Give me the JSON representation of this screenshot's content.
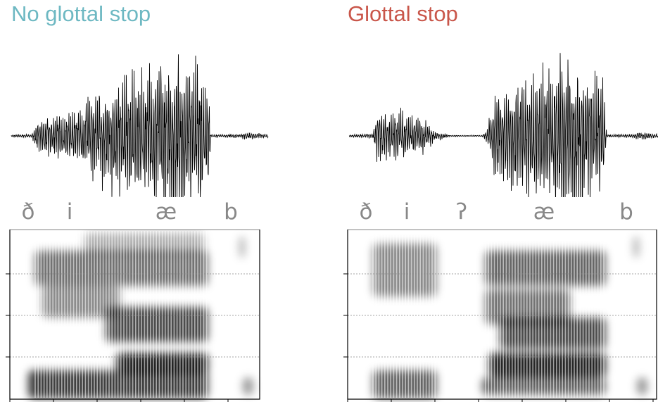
{
  "colors": {
    "left_title": "#6db8c2",
    "right_title": "#c9564a",
    "phoneme": "#888888",
    "waveform": "#000000"
  },
  "panels": [
    {
      "title": "No glottal stop",
      "phonemes": [
        "ð",
        "i",
        "æ",
        "b"
      ]
    },
    {
      "title": "Glottal stop",
      "phonemes": [
        "ð",
        "i",
        "ʔ",
        "æ",
        "b"
      ]
    }
  ]
}
